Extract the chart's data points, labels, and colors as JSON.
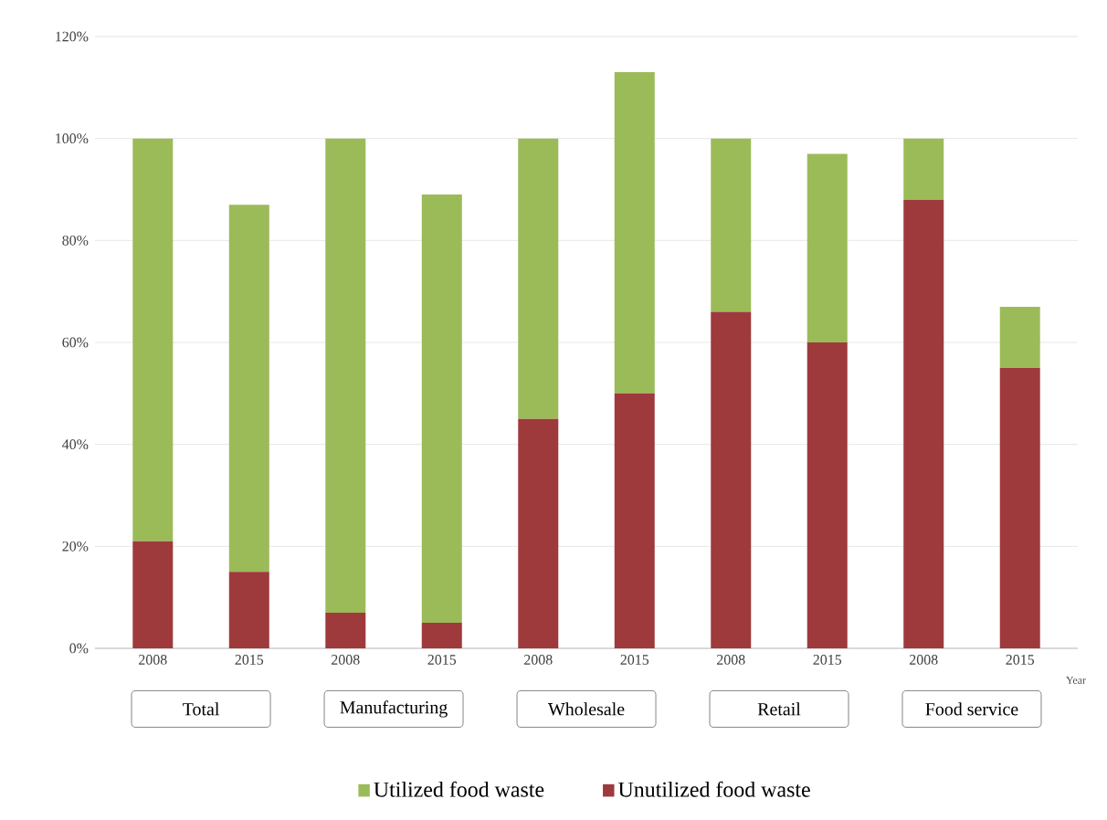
{
  "chart_data": {
    "type": "bar",
    "stacked": true,
    "categories": [
      "2008",
      "2015",
      "2008",
      "2015",
      "2008",
      "2015",
      "2008",
      "2015",
      "2008",
      "2015"
    ],
    "series": [
      {
        "name": "Unutilized food waste",
        "color": "#9e3a3c",
        "values": [
          21,
          15,
          7,
          5,
          45,
          50,
          66,
          60,
          88,
          55
        ]
      },
      {
        "name": "Utilized food waste",
        "color": "#9bbb59",
        "values": [
          79,
          72,
          93,
          84,
          55,
          63,
          34,
          37,
          12,
          12
        ]
      }
    ],
    "xlabel": "Year",
    "annotations": [
      "Total",
      "Manufacturing",
      "Wholesale",
      "Retail",
      "Food service"
    ],
    "ylim": [
      0,
      120
    ],
    "yticks": [
      {
        "value": 0,
        "label": "0%"
      },
      {
        "value": 20,
        "label": "20%"
      },
      {
        "value": 40,
        "label": "40%"
      },
      {
        "value": 60,
        "label": "60%"
      },
      {
        "value": 80,
        "label": "80%"
      },
      {
        "value": 100,
        "label": "100%"
      },
      {
        "value": 120,
        "label": "120%"
      }
    ],
    "grid": "y",
    "legend": "bottom"
  }
}
